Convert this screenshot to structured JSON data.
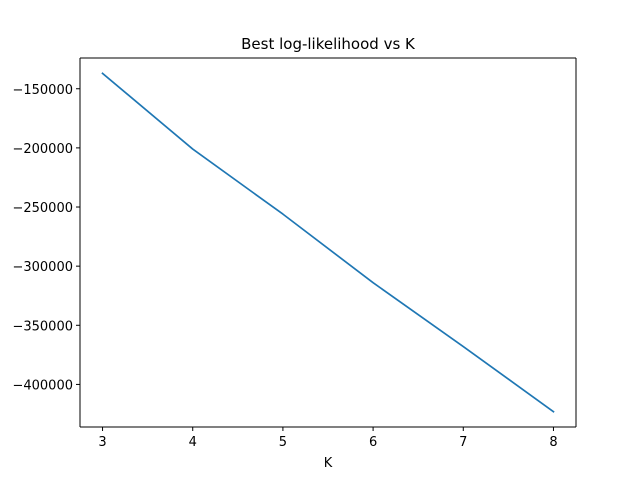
{
  "chart_data": {
    "type": "line",
    "title": "Best log-likelihood vs K",
    "xlabel": "K",
    "ylabel": "",
    "xlim": [
      2.75,
      8.25
    ],
    "ylim": [
      -436000,
      -124000
    ],
    "x_ticks": [
      3,
      4,
      5,
      6,
      7,
      8
    ],
    "y_ticks": [
      -150000,
      -200000,
      -250000,
      -300000,
      -350000,
      -400000
    ],
    "grid": false,
    "series": [
      {
        "color": "#1f77b4",
        "x": [
          3,
          4,
          5,
          6,
          7,
          8
        ],
        "y": [
          -137000,
          -201000,
          -256000,
          -314000,
          -368000,
          -423000
        ]
      }
    ]
  }
}
